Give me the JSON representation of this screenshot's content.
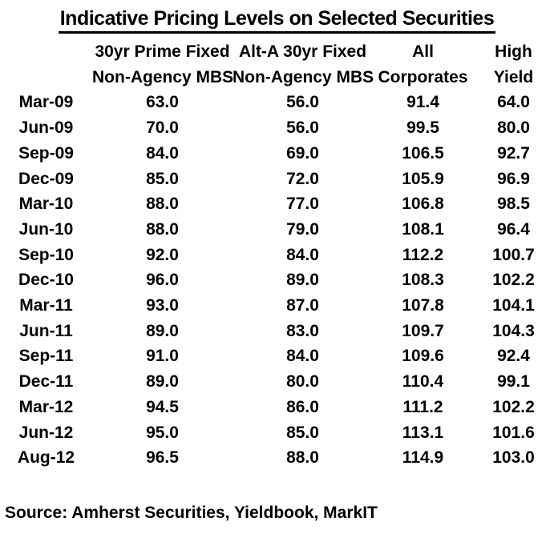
{
  "title": "Indicative Pricing Levels on Selected Securities",
  "table": {
    "header_line1": [
      "",
      "30yr Prime Fixed",
      "Alt-A 30yr Fixed",
      "All",
      "High"
    ],
    "header_line2": [
      "",
      "Non-Agency MBS",
      "Non-Agency MBS",
      "Corporates",
      "Yield"
    ],
    "rows": [
      {
        "label": "Mar-09",
        "values": [
          "63.0",
          "56.0",
          "91.4",
          "64.0"
        ]
      },
      {
        "label": "Jun-09",
        "values": [
          "70.0",
          "56.0",
          "99.5",
          "80.0"
        ]
      },
      {
        "label": "Sep-09",
        "values": [
          "84.0",
          "69.0",
          "106.5",
          "92.7"
        ]
      },
      {
        "label": "Dec-09",
        "values": [
          "85.0",
          "72.0",
          "105.9",
          "96.9"
        ]
      },
      {
        "label": "Mar-10",
        "values": [
          "88.0",
          "77.0",
          "106.8",
          "98.5"
        ]
      },
      {
        "label": "Jun-10",
        "values": [
          "88.0",
          "79.0",
          "108.1",
          "96.4"
        ]
      },
      {
        "label": "Sep-10",
        "values": [
          "92.0",
          "84.0",
          "112.2",
          "100.7"
        ]
      },
      {
        "label": "Dec-10",
        "values": [
          "96.0",
          "89.0",
          "108.3",
          "102.2"
        ]
      },
      {
        "label": "Mar-11",
        "values": [
          "93.0",
          "87.0",
          "107.8",
          "104.1"
        ]
      },
      {
        "label": "Jun-11",
        "values": [
          "89.0",
          "83.0",
          "109.7",
          "104.3"
        ]
      },
      {
        "label": "Sep-11",
        "values": [
          "91.0",
          "84.0",
          "109.6",
          "92.4"
        ]
      },
      {
        "label": "Dec-11",
        "values": [
          "89.0",
          "80.0",
          "110.4",
          "99.1"
        ]
      },
      {
        "label": "Mar-12",
        "values": [
          "94.5",
          "86.0",
          "111.2",
          "102.2"
        ]
      },
      {
        "label": "Jun-12",
        "values": [
          "95.0",
          "85.0",
          "113.1",
          "101.6"
        ]
      },
      {
        "label": "Aug-12",
        "values": [
          "96.5",
          "88.0",
          "114.9",
          "103.0"
        ]
      }
    ]
  },
  "source": "Source: Amherst Securities, Yieldbook, MarkIT",
  "colors": {
    "text": "#000000",
    "background": "#ffffff"
  },
  "chart_data": {
    "type": "table",
    "title": "Indicative Pricing Levels on Selected Securities",
    "categories": [
      "Mar-09",
      "Jun-09",
      "Sep-09",
      "Dec-09",
      "Mar-10",
      "Jun-10",
      "Sep-10",
      "Dec-10",
      "Mar-11",
      "Jun-11",
      "Sep-11",
      "Dec-11",
      "Mar-12",
      "Jun-12",
      "Aug-12"
    ],
    "series": [
      {
        "name": "30yr Prime Fixed Non-Agency MBS",
        "values": [
          63.0,
          70.0,
          84.0,
          85.0,
          88.0,
          88.0,
          92.0,
          96.0,
          93.0,
          89.0,
          91.0,
          89.0,
          94.5,
          95.0,
          96.5
        ]
      },
      {
        "name": "Alt-A 30yr Fixed Non-Agency MBS",
        "values": [
          56.0,
          56.0,
          69.0,
          72.0,
          77.0,
          79.0,
          84.0,
          89.0,
          87.0,
          83.0,
          84.0,
          80.0,
          86.0,
          85.0,
          88.0
        ]
      },
      {
        "name": "All Corporates",
        "values": [
          91.4,
          99.5,
          106.5,
          105.9,
          106.8,
          108.1,
          112.2,
          108.3,
          107.8,
          109.7,
          109.6,
          110.4,
          111.2,
          113.1,
          114.9
        ]
      },
      {
        "name": "High Yield",
        "values": [
          64.0,
          80.0,
          92.7,
          96.9,
          98.5,
          96.4,
          100.7,
          102.2,
          104.1,
          104.3,
          92.4,
          99.1,
          102.2,
          101.6,
          103.0
        ]
      }
    ],
    "source": "Source: Amherst Securities, Yieldbook, MarkIT"
  }
}
